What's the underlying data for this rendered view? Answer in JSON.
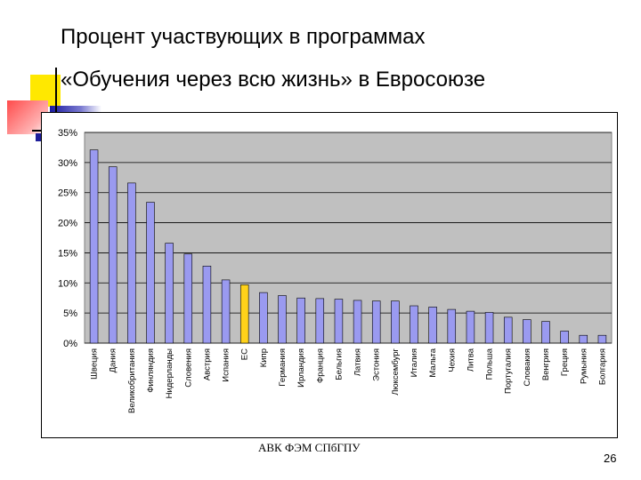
{
  "slide": {
    "title_line1": "Процент участвующих в программах",
    "title_line2": "«Обучения через всю жизнь» в Евросоюзе",
    "footer": "АВК ФЭМ СПбГПУ",
    "page_number": "26"
  },
  "colors": {
    "bar": "#9a9af0",
    "bar_highlight": "#ffd21a",
    "plot_bg": "#c0c0c0"
  },
  "chart_data": {
    "type": "bar",
    "title": "",
    "xlabel": "",
    "ylabel": "",
    "ylim": [
      0,
      35
    ],
    "yticks": [
      "0%",
      "5%",
      "10%",
      "15%",
      "20%",
      "25%",
      "30%",
      "35%"
    ],
    "ytick_values": [
      0,
      5,
      10,
      15,
      20,
      25,
      30,
      35
    ],
    "grid": true,
    "highlight_category": "ЕС",
    "categories": [
      "Швеция",
      "Дания",
      "Великобритания",
      "Финляндия",
      "Нидерланды",
      "Словения",
      "Австрия",
      "Испания",
      "ЕС",
      "Кипр",
      "Германия",
      "Ирландия",
      "Франция",
      "Бельгия",
      "Латвия",
      "Эстония",
      "Люксембург",
      "Италия",
      "Мальта",
      "Чехия",
      "Литва",
      "Польша",
      "Португалия",
      "Словакия",
      "Венгрия",
      "Греция",
      "Румыния",
      "Болгария"
    ],
    "values": [
      32.1,
      29.3,
      26.6,
      23.4,
      16.6,
      14.8,
      12.8,
      10.5,
      9.7,
      8.4,
      7.9,
      7.5,
      7.4,
      7.3,
      7.1,
      7.0,
      7.0,
      6.2,
      6.0,
      5.6,
      5.3,
      5.1,
      4.3,
      3.9,
      3.6,
      2.0,
      1.3,
      1.3
    ]
  }
}
